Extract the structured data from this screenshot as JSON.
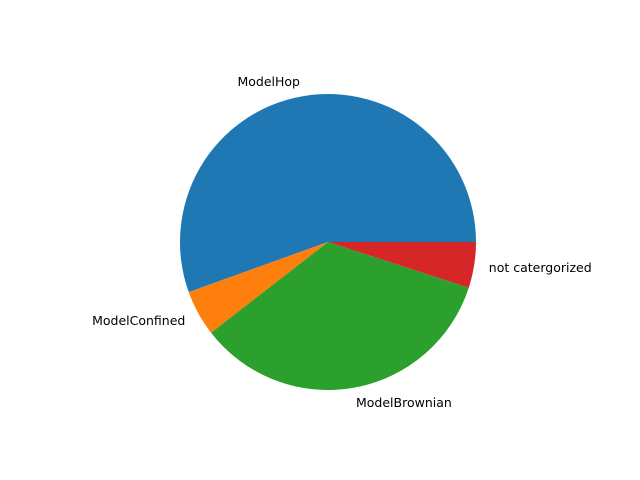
{
  "chart_data": {
    "type": "pie",
    "title": "",
    "start_angle_deg": 0,
    "direction": "counterclockwise",
    "slices": [
      {
        "label": "ModelHop",
        "value": 55.5,
        "color": "#1f77b4"
      },
      {
        "label": "ModelConfined",
        "value": 5.0,
        "color": "#ff7f0e"
      },
      {
        "label": "ModelBrownian",
        "value": 34.5,
        "color": "#2ca02c"
      },
      {
        "label": "not catergorized",
        "value": 5.0,
        "color": "#d62728"
      }
    ]
  }
}
